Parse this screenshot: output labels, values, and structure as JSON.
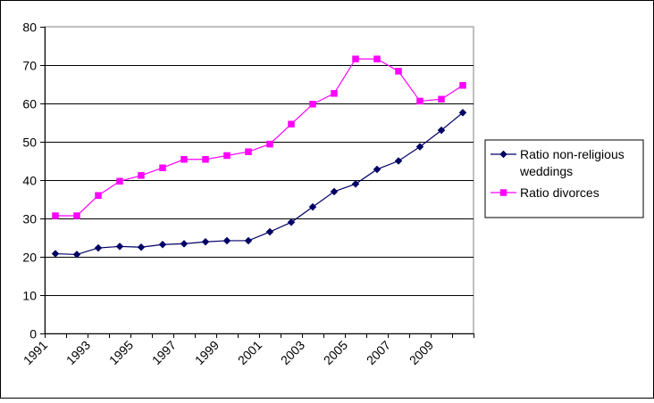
{
  "chart_data": {
    "type": "line",
    "title": "",
    "xlabel": "",
    "ylabel": "",
    "ylim": [
      0,
      80
    ],
    "yticks": [
      0,
      10,
      20,
      30,
      40,
      50,
      60,
      70,
      80
    ],
    "x": [
      1991,
      1992,
      1993,
      1994,
      1995,
      1996,
      1997,
      1998,
      1999,
      2000,
      2001,
      2002,
      2003,
      2004,
      2005,
      2006,
      2007,
      2008,
      2009,
      2010
    ],
    "xtick_labels": [
      "1991",
      "1993",
      "1995",
      "1997",
      "1999",
      "2001",
      "2003",
      "2005",
      "2007",
      "2009"
    ],
    "grid": "horizontal",
    "legend_position": "right",
    "series": [
      {
        "name": "Ratio non-religious weddings",
        "legend_lines": [
          "Ratio non-religious",
          "weddings"
        ],
        "color": "#000066",
        "marker": "diamond",
        "values": [
          20.8,
          20.6,
          22.3,
          22.7,
          22.5,
          23.2,
          23.4,
          23.9,
          24.2,
          24.2,
          26.5,
          29.0,
          33.0,
          37.0,
          39.0,
          42.8,
          45.0,
          48.7,
          53.0,
          57.6
        ]
      },
      {
        "name": "Ratio divorces",
        "legend_lines": [
          "Ratio divorces"
        ],
        "color": "#ff00ff",
        "marker": "square",
        "values": [
          30.7,
          30.7,
          36.0,
          39.7,
          41.2,
          43.2,
          45.4,
          45.4,
          46.4,
          47.4,
          49.4,
          54.6,
          59.8,
          62.6,
          71.6,
          71.6,
          68.4,
          60.6,
          61.1,
          64.7
        ]
      }
    ]
  }
}
